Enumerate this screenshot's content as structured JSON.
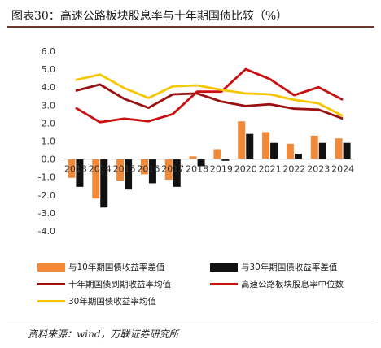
{
  "title": "图表30：高速公路板块股息率与十年期国债比较（%）",
  "source": "资料来源：wind，万联证券研究所",
  "chart_data": {
    "type": "bar",
    "categories": [
      "2013",
      "2014",
      "2015",
      "2016",
      "2017",
      "2018",
      "2019",
      "2020",
      "2021",
      "2022",
      "2023",
      "2024"
    ],
    "ylim": [
      -4,
      6
    ],
    "yticks": [
      "6.0",
      "5.0",
      "4.0",
      "3.0",
      "2.0",
      "1.0",
      "0.0",
      "-1.0",
      "-2.0",
      "-3.0",
      "-4.0"
    ],
    "ytick_values": [
      6,
      5,
      4,
      3,
      2,
      1,
      0,
      -1,
      -2,
      -3,
      -4
    ],
    "grid": false,
    "legend_position": "bottom",
    "series": [
      {
        "name": "与10年期国债收益率差值",
        "kind": "bar",
        "color": "#f08a3a",
        "values": [
          -1.05,
          -2.2,
          -1.2,
          -0.85,
          -1.15,
          0.15,
          0.55,
          2.1,
          1.5,
          0.85,
          1.3,
          1.15
        ]
      },
      {
        "name": "与30年期国债收益率差值",
        "kind": "bar",
        "color": "#111111",
        "values": [
          -1.55,
          -2.7,
          -1.7,
          -1.35,
          -1.55,
          -0.4,
          -0.1,
          1.4,
          0.9,
          0.3,
          0.9,
          0.9
        ]
      },
      {
        "name": "十年期国债到期收益率均值",
        "kind": "line",
        "color": "#9b1010",
        "values": [
          3.8,
          4.15,
          3.35,
          2.85,
          3.6,
          3.65,
          3.2,
          2.95,
          3.05,
          2.8,
          2.75,
          2.25
        ]
      },
      {
        "name": "高速公路板块股息率中位数",
        "kind": "line",
        "color": "#c81010",
        "values": [
          2.85,
          2.05,
          2.25,
          2.1,
          2.5,
          3.75,
          3.75,
          5.0,
          4.45,
          3.55,
          4.0,
          3.3
        ]
      },
      {
        "name": "30年期国债收益率均值",
        "kind": "line",
        "color": "#f7c600",
        "values": [
          4.4,
          4.7,
          3.95,
          3.4,
          4.05,
          4.1,
          3.85,
          3.65,
          3.6,
          3.3,
          3.1,
          2.4
        ]
      }
    ]
  }
}
